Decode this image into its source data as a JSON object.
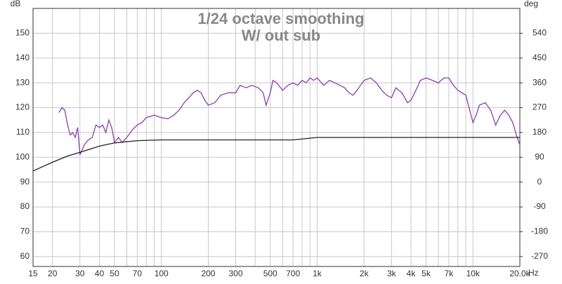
{
  "chart_data": {
    "type": "line",
    "title": [
      "1/24 octave smoothing",
      "W/ out sub"
    ],
    "y_label": "dB",
    "y2_label": "deg",
    "x_label": "Hz",
    "xscale": "log",
    "xlim": [
      15,
      20000
    ],
    "ylim": [
      56,
      160
    ],
    "y2lim": [
      -306,
      630
    ],
    "grid": true,
    "xticks": [
      15,
      20,
      30,
      40,
      50,
      70,
      100,
      200,
      300,
      500,
      700,
      {
        "value": 1000,
        "label": "1k"
      },
      {
        "value": 2000,
        "label": "2k"
      },
      {
        "value": 3000,
        "label": "3k"
      },
      {
        "value": 4000,
        "label": "4k"
      },
      {
        "value": 5000,
        "label": "5k"
      },
      {
        "value": 7000,
        "label": "7k"
      },
      {
        "value": 10000,
        "label": "10k"
      },
      {
        "value": 20000,
        "label": "20.0k"
      }
    ],
    "xminor": [
      60,
      80,
      90,
      400,
      600,
      800,
      900,
      6000,
      8000,
      9000
    ],
    "yticks": [
      60,
      70,
      80,
      90,
      100,
      110,
      120,
      130,
      140,
      150
    ],
    "y2ticks": [
      -270,
      -180,
      -90,
      0,
      90,
      180,
      270,
      360,
      450,
      540
    ],
    "series": [
      {
        "color": "#8b3fb0",
        "x": [
          22,
          23,
          24,
          25,
          26,
          27,
          28,
          29,
          30,
          32,
          34,
          36,
          38,
          40,
          42,
          44,
          46,
          48,
          50,
          53,
          56,
          60,
          65,
          70,
          75,
          80,
          90,
          100,
          110,
          120,
          130,
          140,
          150,
          160,
          170,
          180,
          190,
          200,
          220,
          240,
          270,
          300,
          320,
          350,
          380,
          420,
          450,
          470,
          500,
          520,
          550,
          600,
          650,
          700,
          750,
          800,
          850,
          900,
          950,
          1000,
          1100,
          1200,
          1300,
          1400,
          1500,
          1600,
          1700,
          1800,
          2000,
          2200,
          2400,
          2600,
          2800,
          3000,
          3200,
          3500,
          3800,
          4000,
          4300,
          4600,
          5000,
          5500,
          6000,
          6500,
          7000,
          7500,
          8000,
          9000,
          10000,
          10500,
          11000,
          12000,
          13000,
          14000,
          15000,
          16000,
          17000,
          18000,
          19000,
          20000
        ],
        "values": [
          118,
          120,
          119,
          113,
          109,
          110,
          108,
          112,
          101,
          105,
          107,
          108,
          113,
          112,
          113,
          110,
          115,
          112,
          106,
          108,
          106,
          108,
          111,
          113,
          114,
          116,
          117,
          116,
          115.5,
          117,
          119,
          122,
          124,
          126,
          127,
          126,
          123,
          121,
          122,
          125,
          126,
          126,
          129,
          128,
          129,
          128,
          126,
          121,
          126,
          131,
          130,
          127,
          129,
          130,
          129,
          131,
          130,
          132,
          131,
          132,
          129,
          131,
          130,
          129,
          128,
          126,
          125,
          127,
          131,
          132,
          130,
          127,
          125,
          124,
          128,
          126,
          122,
          123,
          127,
          131,
          132,
          131,
          130,
          132,
          132,
          129,
          127,
          125,
          114,
          117,
          121,
          122,
          119,
          113,
          117,
          119,
          117,
          114,
          109,
          105
        ]
      },
      {
        "color": "#222222",
        "x": [
          15,
          20,
          25,
          30,
          40,
          50,
          70,
          100,
          200,
          500,
          700,
          1000,
          2000,
          20000
        ],
        "values": [
          94.5,
          98,
          100.5,
          102,
          104.5,
          105.8,
          106.7,
          107,
          107,
          107,
          107,
          108,
          108,
          108
        ]
      }
    ]
  }
}
